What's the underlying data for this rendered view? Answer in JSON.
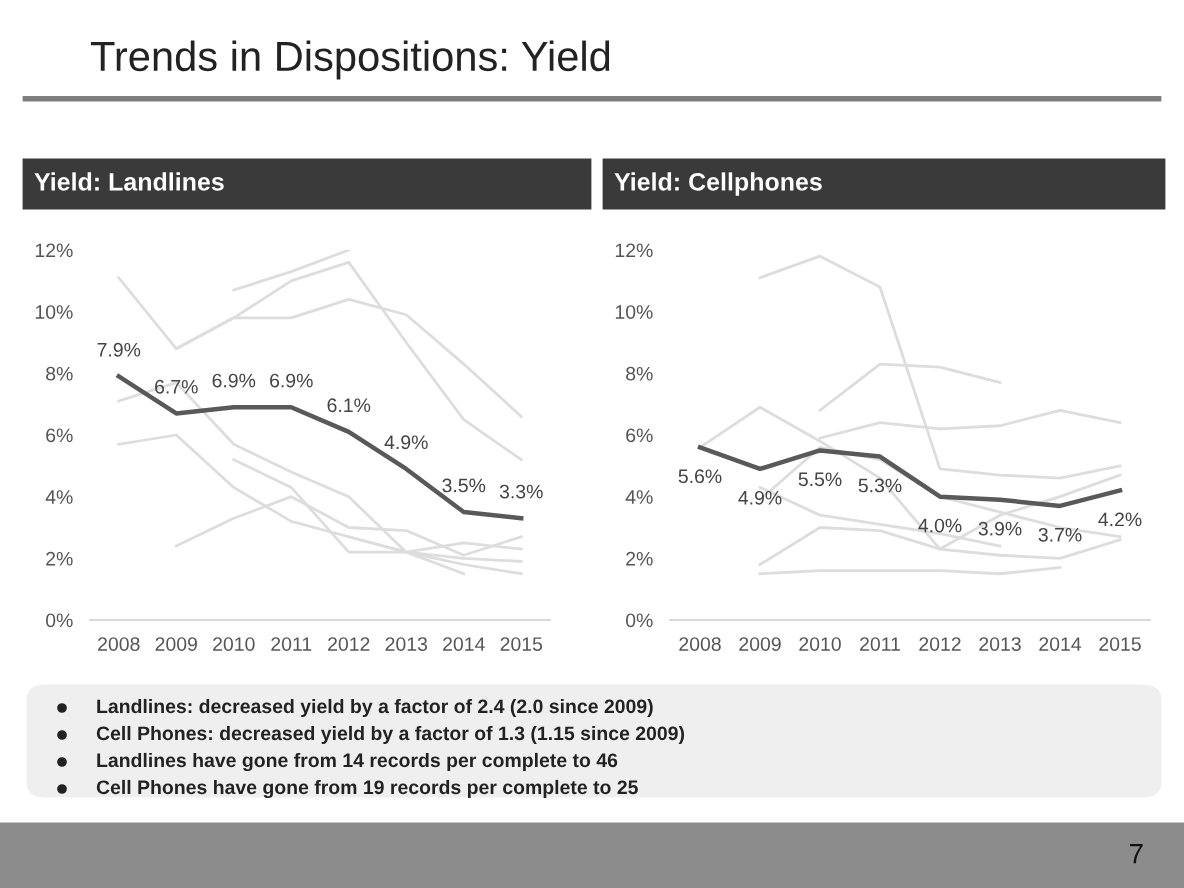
{
  "chart_data": [
    {
      "type": "line",
      "title": "Yield: Landlines",
      "categories": [
        "2008",
        "2009",
        "2010",
        "2011",
        "2012",
        "2013",
        "2014",
        "2015"
      ],
      "ylim": [
        0,
        12
      ],
      "yticks": [
        {
          "value": 0,
          "label": "0%"
        },
        {
          "value": 2,
          "label": "2%"
        },
        {
          "value": 4,
          "label": "4%"
        },
        {
          "value": 6,
          "label": "6%"
        },
        {
          "value": 8,
          "label": "8%"
        },
        {
          "value": 10,
          "label": "10%"
        },
        {
          "value": 12,
          "label": "12%"
        }
      ],
      "grid": false,
      "legend": false,
      "marker": "none",
      "line_style": "solid",
      "annotations": [
        "Trends in Dispositions: Yield",
        "7"
      ],
      "series": [
        {
          "color": "#dddddd",
          "values": [
            11.1,
            8.8,
            9.8,
            11.0,
            11.6,
            9.0,
            6.5,
            5.2
          ]
        },
        {
          "color": "#dddddd",
          "values": [
            null,
            null,
            10.7,
            11.3,
            12.0,
            null,
            null,
            null
          ]
        },
        {
          "color": "#dddddd",
          "values": [
            null,
            8.8,
            9.8,
            9.8,
            10.4,
            9.9,
            8.3,
            6.6
          ]
        },
        {
          "color": "#dddddd",
          "values": [
            7.1,
            7.7,
            5.7,
            4.8,
            4.0,
            2.2,
            2.0,
            1.9
          ]
        },
        {
          "color": "#dddddd",
          "values": [
            5.7,
            6.0,
            4.3,
            3.2,
            2.7,
            2.2,
            1.8,
            1.5
          ]
        },
        {
          "color": "#dddddd",
          "values": [
            null,
            null,
            5.2,
            4.3,
            2.2,
            2.2,
            2.5,
            2.3
          ]
        },
        {
          "color": "#dddddd",
          "values": [
            null,
            2.4,
            3.3,
            4.0,
            3.0,
            2.9,
            2.1,
            2.7
          ]
        },
        {
          "color": "#dddddd",
          "values": [
            null,
            null,
            null,
            null,
            2.7,
            2.2,
            1.5,
            null
          ]
        },
        {
          "color": "#595959",
          "values": [
            7.9,
            6.7,
            6.9,
            6.9,
            6.1,
            4.9,
            3.5,
            3.3
          ],
          "value_labels": [
            "7.9%",
            "6.7%",
            "6.9%",
            "6.9%",
            "6.1%",
            "4.9%",
            "3.5%",
            "3.3%"
          ]
        }
      ]
    },
    {
      "type": "line",
      "title": "Yield: Cellphones",
      "categories": [
        "2008",
        "2009",
        "2010",
        "2011",
        "2012",
        "2013",
        "2014",
        "2015"
      ],
      "ylim": [
        0,
        12
      ],
      "yticks": [
        {
          "value": 0,
          "label": "0%"
        },
        {
          "value": 2,
          "label": "2%"
        },
        {
          "value": 4,
          "label": "4%"
        },
        {
          "value": 6,
          "label": "6%"
        },
        {
          "value": 8,
          "label": "8%"
        },
        {
          "value": 10,
          "label": "10%"
        },
        {
          "value": 12,
          "label": "12%"
        }
      ],
      "grid": false,
      "legend": false,
      "marker": "none",
      "line_style": "solid",
      "annotations": [
        "Landlines: decreased yield by a factor of 2.4 (2.0 since 2009)",
        "Cell Phones: decreased yield by a factor of 1.3 (1.15 since 2009)",
        "Landlines have gone from 14 records per complete to 46",
        "Cell Phones have gone from 19 records per complete to 25"
      ],
      "series": [
        {
          "color": "#dddddd",
          "values": [
            null,
            11.1,
            11.8,
            10.8,
            4.9,
            4.7,
            4.6,
            5.0
          ]
        },
        {
          "color": "#dddddd",
          "values": [
            null,
            null,
            6.8,
            8.3,
            8.2,
            7.7,
            null,
            null
          ]
        },
        {
          "color": "#dddddd",
          "values": [
            null,
            null,
            5.9,
            6.4,
            6.2,
            6.3,
            6.8,
            6.4
          ]
        },
        {
          "color": "#dddddd",
          "values": [
            5.6,
            6.9,
            5.8,
            4.6,
            2.3,
            3.4,
            4.0,
            4.7
          ]
        },
        {
          "color": "#dddddd",
          "values": [
            null,
            4.3,
            3.4,
            3.1,
            2.8,
            2.4,
            null,
            null
          ]
        },
        {
          "color": "#dddddd",
          "values": [
            null,
            3.9,
            5.6,
            5.2,
            4.0,
            3.5,
            3.0,
            2.7
          ]
        },
        {
          "color": "#dddddd",
          "values": [
            null,
            1.8,
            3.0,
            2.9,
            2.3,
            2.1,
            2.0,
            2.6
          ]
        },
        {
          "color": "#dddddd",
          "values": [
            null,
            1.5,
            1.6,
            1.6,
            1.6,
            1.5,
            1.7,
            null
          ]
        },
        {
          "color": "#595959",
          "values": [
            5.6,
            4.9,
            5.5,
            5.3,
            4.0,
            3.9,
            3.7,
            4.2
          ],
          "value_labels": [
            "5.6%",
            "4.9%",
            "5.5%",
            "5.3%",
            "4.0%",
            "3.9%",
            "3.7%",
            "4.2%"
          ]
        }
      ]
    }
  ]
}
